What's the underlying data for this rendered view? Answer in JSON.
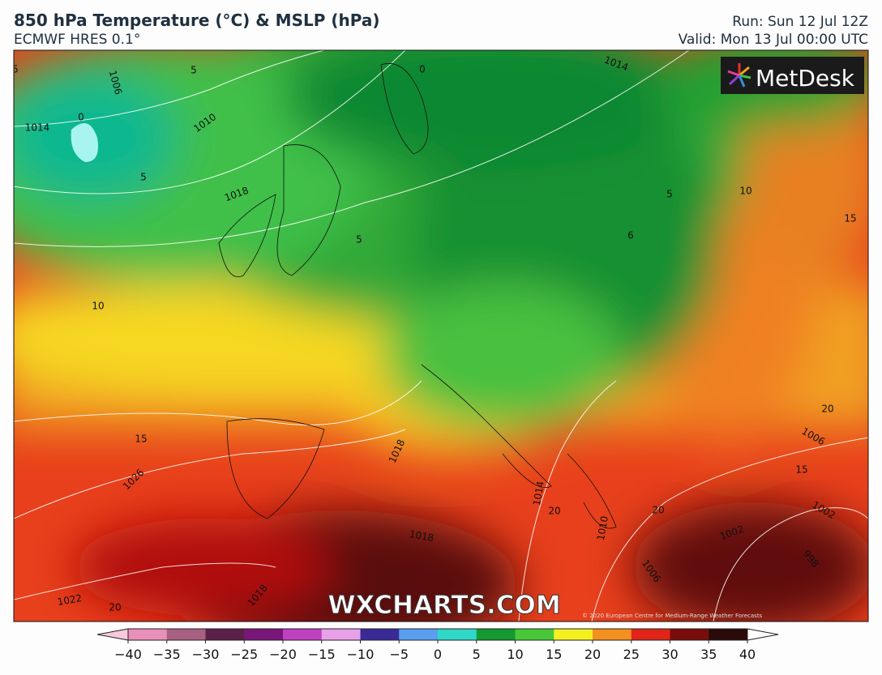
{
  "header": {
    "title": "850 hPa Temperature (°C) & MSLP (hPa)",
    "subtitle": "ECMWF HRES 0.1°",
    "run": "Run: Sun 12 Jul 12Z",
    "valid": "Valid: Mon 13 Jul 00:00 UTC"
  },
  "logo": "MetDesk",
  "watermark": "WXCHARTS.COM",
  "copyright": "© 2020 European Centre for Medium-Range Weather Forecasts",
  "map_labels": [
    "5",
    "1006",
    "5",
    "0",
    "1014",
    "0",
    "1014",
    "1010",
    "5",
    "1018",
    "10",
    "5",
    "15",
    "5",
    "6",
    "10",
    "15",
    "20",
    "1006",
    "1018",
    "1026",
    "15",
    "1014",
    "20",
    "20",
    "1002",
    "1002",
    "1010",
    "1018",
    "998",
    "1006",
    "1022",
    "20",
    "1018"
  ],
  "colorbar": {
    "range": [
      -40,
      40
    ],
    "ticks": [
      {
        "value": -40,
        "label": "−40"
      },
      {
        "value": -35,
        "label": "−35"
      },
      {
        "value": -30,
        "label": "−30"
      },
      {
        "value": -25,
        "label": "−25"
      },
      {
        "value": -20,
        "label": "−20"
      },
      {
        "value": -15,
        "label": "−15"
      },
      {
        "value": -10,
        "label": "−10"
      },
      {
        "value": -5,
        "label": "−5"
      },
      0,
      5,
      10,
      15,
      20,
      25,
      30,
      35,
      40
    ],
    "colors": [
      "#e890b8",
      "#a86080",
      "#5a2048",
      "#7a157a",
      "#c040c0",
      "#e8a0e8",
      "#3a2a98",
      "#5a9ef0",
      "#30d8c8",
      "#139a30",
      "#48c838",
      "#f4f020",
      "#f49020",
      "#e02418",
      "#7a0c0c",
      "#2a0a0a"
    ]
  }
}
